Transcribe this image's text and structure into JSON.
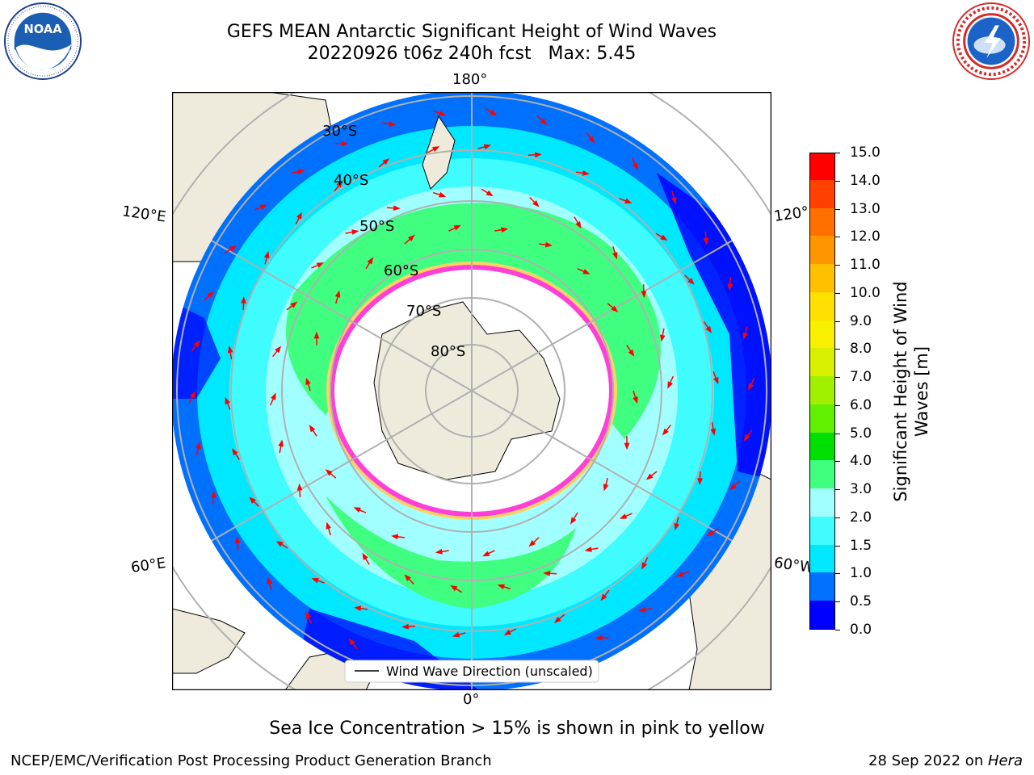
{
  "header": {
    "title_line1": "GEFS MEAN Antarctic Significant Height of Wind Waves",
    "title_line2": "20220926 t06z 240h fcst   Max: 5.45"
  },
  "logos": {
    "left": "noaa-logo",
    "right": "national-weather-service-logo"
  },
  "map": {
    "projection": "south-polar-stereographic",
    "longitude_labels": {
      "top": "180°",
      "bottom": "0°",
      "left_upper": "120°E",
      "left_lower": "60°E",
      "right_upper": "120°",
      "right_lower": "60°W"
    },
    "latitude_labels": [
      "30°S",
      "40°S",
      "50°S",
      "60°S",
      "70°S",
      "80°S"
    ],
    "legend_label": "Wind Wave Direction (unscaled)",
    "arrow_color": "#ff0000",
    "land_color": "#efebdc",
    "ice_edge_colors": [
      "#ff3fd7",
      "#ffd066"
    ]
  },
  "colorbar": {
    "title_line1": "Significant Height of Wind",
    "title_line2": "Waves [m]",
    "ticks": [
      "0.0",
      "0.5",
      "1.0",
      "1.5",
      "2.0",
      "3.0",
      "4.0",
      "5.0",
      "6.0",
      "7.0",
      "8.0",
      "9.0",
      "10.0",
      "11.0",
      "12.0",
      "13.0",
      "14.0",
      "15.0"
    ],
    "colors": [
      "#0000ff",
      "#0070ff",
      "#00e8ff",
      "#3ffcff",
      "#a2ffff",
      "#40ff80",
      "#00e000",
      "#60f000",
      "#a0f000",
      "#d8f000",
      "#f8f000",
      "#ffe000",
      "#ffc000",
      "#ff9600",
      "#ff7000",
      "#ff4000",
      "#ff0000"
    ]
  },
  "footer": {
    "note": "Sea Ice Concentration > 15% is shown in pink to yellow",
    "credit_left": "NCEP/EMC/Verification Post Processing Product Generation Branch",
    "credit_date": "28 Sep 2022 on ",
    "credit_host": "Hera"
  }
}
